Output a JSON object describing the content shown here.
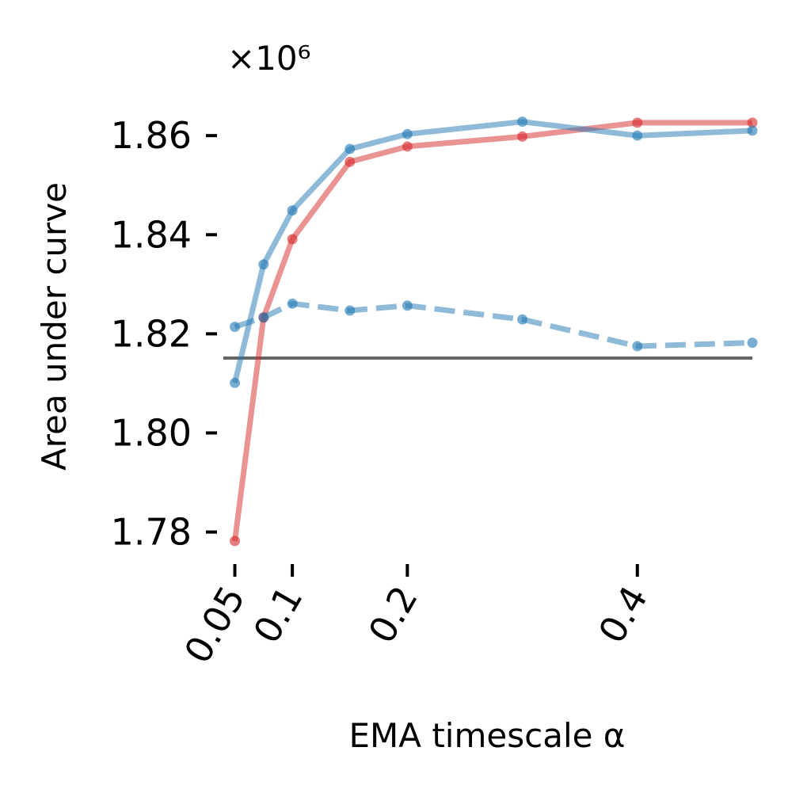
{
  "chart_data": {
    "type": "line",
    "xlabel": "EMA timescale α",
    "ylabel": "Area under curve",
    "y_offset_label": "×10⁶",
    "xlim": [
      0.04,
      0.5
    ],
    "ylim": [
      1.7745,
      1.8685
    ],
    "x_ticks": [
      0.05,
      0.1,
      0.2,
      0.4
    ],
    "x_tick_labels": [
      "0.05",
      "0.1",
      "0.2",
      "0.4"
    ],
    "y_ticks": [
      1.78,
      1.8,
      1.82,
      1.84,
      1.86
    ],
    "y_tick_labels": [
      "1.78",
      "1.80",
      "1.82",
      "1.84",
      "1.86"
    ],
    "reference_line": {
      "y": 1.8151,
      "color": "#666666"
    },
    "series": [
      {
        "style": "solid",
        "color": "#d62728",
        "x": [
          0.05,
          0.075,
          0.1,
          0.15,
          0.2,
          0.3,
          0.4,
          0.5
        ],
        "y": [
          1.7782,
          1.8233,
          1.8391,
          1.8547,
          1.8578,
          1.8598,
          1.8626,
          1.8626
        ]
      },
      {
        "style": "solid",
        "color": "#1f77b4",
        "x": [
          0.05,
          0.075,
          0.1,
          0.15,
          0.2,
          0.3,
          0.4,
          0.5
        ],
        "y": [
          1.8101,
          1.834,
          1.8449,
          1.8573,
          1.8603,
          1.8628,
          1.86,
          1.861
        ]
      },
      {
        "style": "dashed",
        "color": "#1f77b4",
        "x": [
          0.05,
          0.075,
          0.1,
          0.15,
          0.2,
          0.3,
          0.4,
          0.5
        ],
        "y": [
          1.8214,
          1.8233,
          1.8261,
          1.8247,
          1.8257,
          1.8229,
          1.8175,
          1.8182
        ]
      }
    ]
  }
}
